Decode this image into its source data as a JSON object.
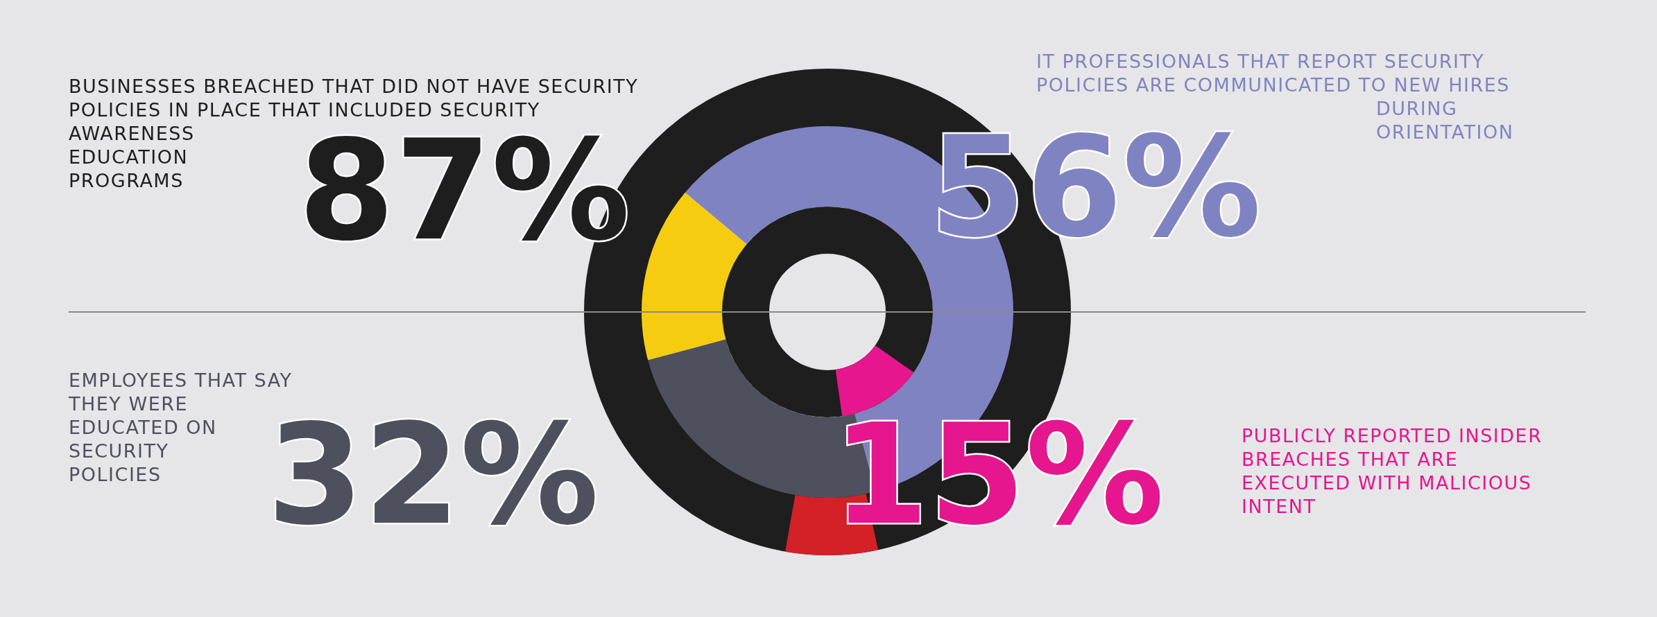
{
  "chart_data": {
    "type": "other",
    "categories": [
      "BUSINESSES BREACHED THAT DID NOT HAVE SECURITY POLICIES IN PLACE THAT INCLUDED SECURITY AWARENESS EDUCATION PROGRAMS",
      "IT PROFESSIONALS THAT REPORT SECURITY POLICIES ARE COMMUNICATED TO NEW HIRES DURING ORIENTATION",
      "EMPLOYEES THAT SAY THEY WERE EDUCATED ON SECURITY POLICIES",
      "PUBLICLY REPORTED INSIDER BREACHES THAT ARE EXECUTED WITH MALICIOUS INTENT"
    ],
    "values": [
      87,
      56,
      32,
      15
    ],
    "value_labels": [
      "87%",
      "56%",
      "32%",
      "15%"
    ],
    "colors": [
      "#1e1e1e",
      "#8083c2",
      "#4f505e",
      "#e5168e"
    ]
  }
}
